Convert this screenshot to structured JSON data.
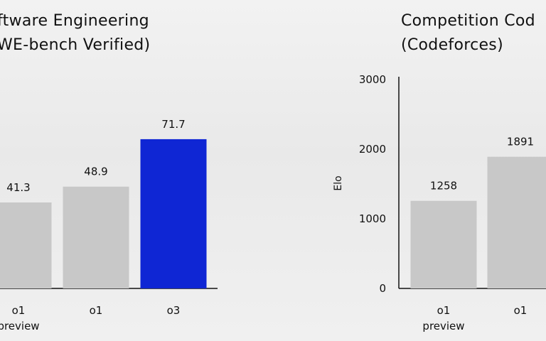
{
  "chart_data": [
    {
      "type": "bar",
      "title": [
        "ftware Engineering",
        "WE-bench Verified)"
      ],
      "xlabel": "",
      "ylabel": "",
      "categories": [
        [
          "o1",
          "preview"
        ],
        [
          "o1"
        ],
        [
          "o3"
        ]
      ],
      "values": [
        41.3,
        48.9,
        71.7
      ],
      "value_labels": [
        "41.3",
        "48.9",
        "71.7"
      ],
      "colors": [
        "#c8c8c8",
        "#c8c8c8",
        "#0f26d4"
      ],
      "ylim": [
        0,
        100
      ],
      "grid": false,
      "legend": "none"
    },
    {
      "type": "bar",
      "title": [
        "Competition Cod",
        "(Codeforces)"
      ],
      "xlabel": "",
      "ylabel": "Elo",
      "categories": [
        [
          "o1",
          "preview"
        ],
        [
          "o1"
        ]
      ],
      "values": [
        1258,
        1891
      ],
      "value_labels": [
        "1258",
        "1891"
      ],
      "colors": [
        "#c8c8c8",
        "#c8c8c8"
      ],
      "ylim": [
        0,
        3000
      ],
      "yticks": [
        0,
        1000,
        2000,
        3000
      ],
      "ytick_labels": [
        "0",
        "1000",
        "2000",
        "3000"
      ],
      "grid": false,
      "legend": "none"
    }
  ]
}
